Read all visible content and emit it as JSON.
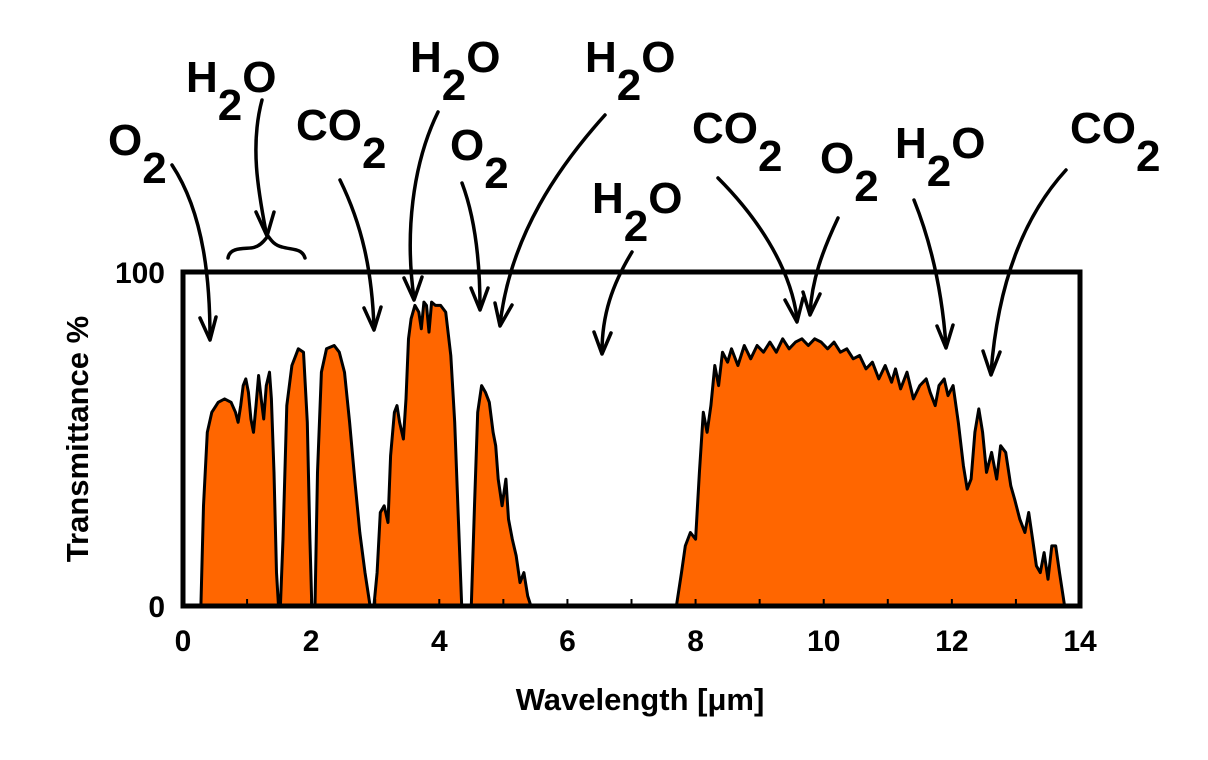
{
  "chart_data": {
    "type": "area",
    "title": "",
    "xlabel": "Wavelength  [μm]",
    "ylabel": "Transmittance %",
    "xlim": [
      0,
      14
    ],
    "ylim": [
      0,
      100
    ],
    "x_ticks": [
      "0",
      "2",
      "4",
      "6",
      "8",
      "10",
      "12",
      "14"
    ],
    "y_ticks": [
      "0",
      "100"
    ],
    "grid": false,
    "fill_color": "#ff6600",
    "outline_color": "#000000",
    "series": [
      {
        "values": [
          [
            0.0,
            0
          ],
          [
            0.28,
            0
          ],
          [
            0.32,
            30
          ],
          [
            0.38,
            52
          ],
          [
            0.45,
            58
          ],
          [
            0.55,
            61
          ],
          [
            0.65,
            62
          ],
          [
            0.75,
            61
          ],
          [
            0.82,
            58
          ],
          [
            0.86,
            55
          ],
          [
            0.9,
            60
          ],
          [
            0.94,
            66
          ],
          [
            0.98,
            68
          ],
          [
            1.02,
            64
          ],
          [
            1.06,
            56
          ],
          [
            1.1,
            52
          ],
          [
            1.14,
            60
          ],
          [
            1.18,
            69
          ],
          [
            1.22,
            62
          ],
          [
            1.26,
            56
          ],
          [
            1.3,
            66
          ],
          [
            1.35,
            70
          ],
          [
            1.38,
            62
          ],
          [
            1.42,
            40
          ],
          [
            1.46,
            10
          ],
          [
            1.49,
            0
          ],
          [
            1.52,
            0
          ],
          [
            1.56,
            20
          ],
          [
            1.62,
            60
          ],
          [
            1.7,
            72
          ],
          [
            1.8,
            77
          ],
          [
            1.88,
            76
          ],
          [
            1.94,
            55
          ],
          [
            1.98,
            20
          ],
          [
            2.01,
            0
          ],
          [
            2.06,
            0
          ],
          [
            2.1,
            40
          ],
          [
            2.16,
            70
          ],
          [
            2.24,
            77
          ],
          [
            2.36,
            78
          ],
          [
            2.44,
            76
          ],
          [
            2.52,
            70
          ],
          [
            2.6,
            55
          ],
          [
            2.68,
            38
          ],
          [
            2.76,
            22
          ],
          [
            2.84,
            10
          ],
          [
            2.92,
            0
          ],
          [
            2.98,
            0
          ],
          [
            3.03,
            10
          ],
          [
            3.08,
            28
          ],
          [
            3.14,
            30
          ],
          [
            3.2,
            25
          ],
          [
            3.24,
            45
          ],
          [
            3.3,
            58
          ],
          [
            3.34,
            60
          ],
          [
            3.38,
            55
          ],
          [
            3.44,
            50
          ],
          [
            3.48,
            62
          ],
          [
            3.52,
            80
          ],
          [
            3.56,
            86
          ],
          [
            3.62,
            90
          ],
          [
            3.68,
            88
          ],
          [
            3.72,
            83
          ],
          [
            3.76,
            91
          ],
          [
            3.8,
            90
          ],
          [
            3.84,
            82
          ],
          [
            3.88,
            91
          ],
          [
            3.94,
            90
          ],
          [
            4.02,
            90
          ],
          [
            4.1,
            88
          ],
          [
            4.18,
            75
          ],
          [
            4.24,
            55
          ],
          [
            4.3,
            25
          ],
          [
            4.35,
            0
          ],
          [
            4.5,
            0
          ],
          [
            4.55,
            30
          ],
          [
            4.6,
            58
          ],
          [
            4.66,
            66
          ],
          [
            4.72,
            64
          ],
          [
            4.78,
            61
          ],
          [
            4.84,
            52
          ],
          [
            4.88,
            48
          ],
          [
            4.92,
            38
          ],
          [
            4.98,
            30
          ],
          [
            5.04,
            38
          ],
          [
            5.08,
            26
          ],
          [
            5.14,
            20
          ],
          [
            5.2,
            15
          ],
          [
            5.26,
            7
          ],
          [
            5.32,
            10
          ],
          [
            5.38,
            3
          ],
          [
            5.43,
            0
          ],
          [
            7.7,
            0
          ],
          [
            7.78,
            10
          ],
          [
            7.84,
            18
          ],
          [
            7.92,
            22
          ],
          [
            8.0,
            20
          ],
          [
            8.06,
            40
          ],
          [
            8.12,
            58
          ],
          [
            8.18,
            52
          ],
          [
            8.24,
            60
          ],
          [
            8.3,
            72
          ],
          [
            8.36,
            66
          ],
          [
            8.42,
            76
          ],
          [
            8.5,
            73
          ],
          [
            8.56,
            77
          ],
          [
            8.66,
            72
          ],
          [
            8.76,
            78
          ],
          [
            8.86,
            74
          ],
          [
            8.96,
            78
          ],
          [
            9.06,
            76
          ],
          [
            9.16,
            79
          ],
          [
            9.26,
            76
          ],
          [
            9.36,
            80
          ],
          [
            9.46,
            77
          ],
          [
            9.56,
            79
          ],
          [
            9.66,
            80
          ],
          [
            9.76,
            78
          ],
          [
            9.86,
            80
          ],
          [
            9.96,
            79
          ],
          [
            10.06,
            77
          ],
          [
            10.16,
            79
          ],
          [
            10.26,
            76
          ],
          [
            10.36,
            77
          ],
          [
            10.46,
            74
          ],
          [
            10.56,
            75
          ],
          [
            10.66,
            71
          ],
          [
            10.76,
            73
          ],
          [
            10.86,
            68
          ],
          [
            10.96,
            72
          ],
          [
            11.06,
            67
          ],
          [
            11.12,
            71
          ],
          [
            11.2,
            65
          ],
          [
            11.3,
            70
          ],
          [
            11.4,
            62
          ],
          [
            11.5,
            66
          ],
          [
            11.6,
            68
          ],
          [
            11.66,
            64
          ],
          [
            11.74,
            60
          ],
          [
            11.8,
            66
          ],
          [
            11.88,
            68
          ],
          [
            11.94,
            63
          ],
          [
            12.02,
            66
          ],
          [
            12.1,
            55
          ],
          [
            12.18,
            42
          ],
          [
            12.24,
            35
          ],
          [
            12.3,
            38
          ],
          [
            12.36,
            52
          ],
          [
            12.42,
            59
          ],
          [
            12.48,
            52
          ],
          [
            12.54,
            40
          ],
          [
            12.62,
            46
          ],
          [
            12.7,
            38
          ],
          [
            12.76,
            48
          ],
          [
            12.84,
            46
          ],
          [
            12.92,
            36
          ],
          [
            12.98,
            32
          ],
          [
            13.06,
            26
          ],
          [
            13.14,
            22
          ],
          [
            13.2,
            28
          ],
          [
            13.26,
            20
          ],
          [
            13.32,
            12
          ],
          [
            13.38,
            10
          ],
          [
            13.44,
            16
          ],
          [
            13.5,
            8
          ],
          [
            13.56,
            18
          ],
          [
            13.62,
            18
          ],
          [
            13.68,
            10
          ],
          [
            13.76,
            0
          ]
        ]
      }
    ],
    "annotations": [
      {
        "text": "O",
        "sub": "2",
        "x": 0.5,
        "y": 80
      },
      {
        "text": "H",
        "sub": "2",
        "after": "O",
        "x": 1.32,
        "y": 110
      },
      {
        "text": "CO",
        "sub": "2",
        "x": 3.0,
        "y": 84
      },
      {
        "text": "H",
        "sub": "2",
        "after": "O",
        "x": 3.75,
        "y": 93
      },
      {
        "text": "O",
        "sub": "2",
        "x": 4.6,
        "y": 88
      },
      {
        "text": "H",
        "sub": "2",
        "after": "O",
        "x": 4.95,
        "y": 85
      },
      {
        "text": "H",
        "sub": "2",
        "after": "O",
        "x": 6.55,
        "y": 77
      },
      {
        "text": "CO",
        "sub": "2",
        "x": 9.65,
        "y": 85
      },
      {
        "text": "O",
        "sub": "2",
        "x": 9.75,
        "y": 88
      },
      {
        "text": "H",
        "sub": "2",
        "after": "O",
        "x": 11.95,
        "y": 78
      },
      {
        "text": "CO",
        "sub": "2",
        "x": 12.6,
        "y": 69
      }
    ]
  }
}
